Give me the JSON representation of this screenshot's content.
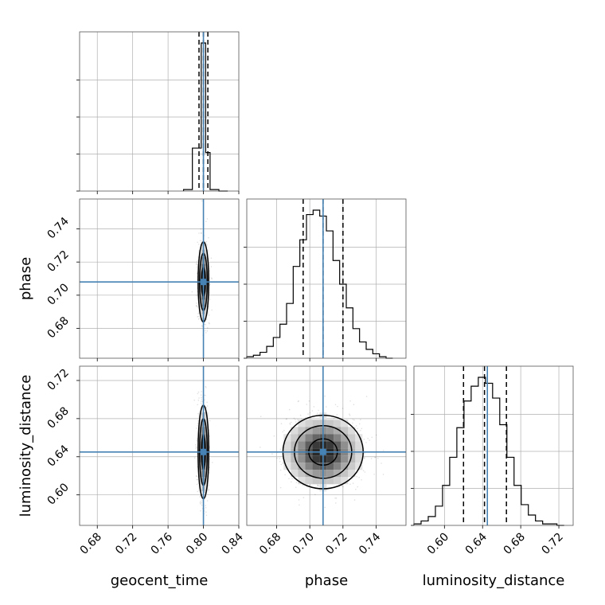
{
  "chart_data": {
    "type": "corner",
    "parameters": [
      {
        "name": "geocent_time",
        "truth": 0.8,
        "quantiles": [
          0.795,
          0.8,
          0.805
        ],
        "range": [
          0.66,
          0.84
        ],
        "ticks": [
          0.68,
          0.72,
          0.76,
          0.8,
          0.84
        ],
        "tick_labels": [
          "0.68",
          "0.72",
          "0.76",
          "0.80",
          "0.84"
        ],
        "hist_bins": [
          0.7775,
          0.7875,
          0.7975,
          0.8025,
          0.8075,
          0.8175,
          0.8275
        ],
        "hist_counts": [
          1,
          29,
          100,
          26,
          1,
          0
        ]
      },
      {
        "name": "phase",
        "truth": 0.708,
        "quantiles": [
          0.696,
          0.708,
          0.72
        ],
        "range": [
          0.662,
          0.758
        ],
        "ticks": [
          0.68,
          0.7,
          0.72,
          0.74
        ],
        "tick_labels": [
          "0.68",
          "0.70",
          "0.72",
          "0.74"
        ],
        "hist_bins": [
          0.662,
          0.666,
          0.67,
          0.674,
          0.678,
          0.682,
          0.686,
          0.69,
          0.694,
          0.698,
          0.702,
          0.706,
          0.71,
          0.714,
          0.718,
          0.722,
          0.726,
          0.73,
          0.734,
          0.738,
          0.742,
          0.746,
          0.75
        ],
        "hist_counts": [
          1,
          2,
          4,
          8,
          14,
          23,
          37,
          62,
          80,
          97,
          100,
          96,
          86,
          66,
          50,
          34,
          20,
          11,
          6,
          3,
          1,
          0
        ]
      },
      {
        "name": "luminosity_distance",
        "truth": 0.645,
        "quantiles": [
          0.62,
          0.642,
          0.665
        ],
        "range": [
          0.568,
          0.735
        ],
        "ticks": [
          0.6,
          0.64,
          0.68,
          0.72
        ],
        "tick_labels": [
          "0.60",
          "0.64",
          "0.68",
          "0.72"
        ],
        "hist_bins": [
          0.568,
          0.5755,
          0.583,
          0.5905,
          0.598,
          0.6055,
          0.613,
          0.6205,
          0.628,
          0.6355,
          0.643,
          0.6505,
          0.658,
          0.6655,
          0.673,
          0.6805,
          0.688,
          0.6955,
          0.703,
          0.7105,
          0.718,
          0.7255
        ],
        "hist_counts": [
          1,
          3,
          6,
          13,
          27,
          46,
          66,
          84,
          94,
          100,
          96,
          86,
          68,
          46,
          27,
          14,
          7,
          3,
          1,
          1,
          0
        ]
      }
    ],
    "xlabels": [
      "geocent_time",
      "phase",
      "luminosity_distance"
    ],
    "ylabels": [
      "",
      "phase",
      "luminosity_distance"
    ],
    "truth_color": "#4682b4",
    "grid": true
  }
}
